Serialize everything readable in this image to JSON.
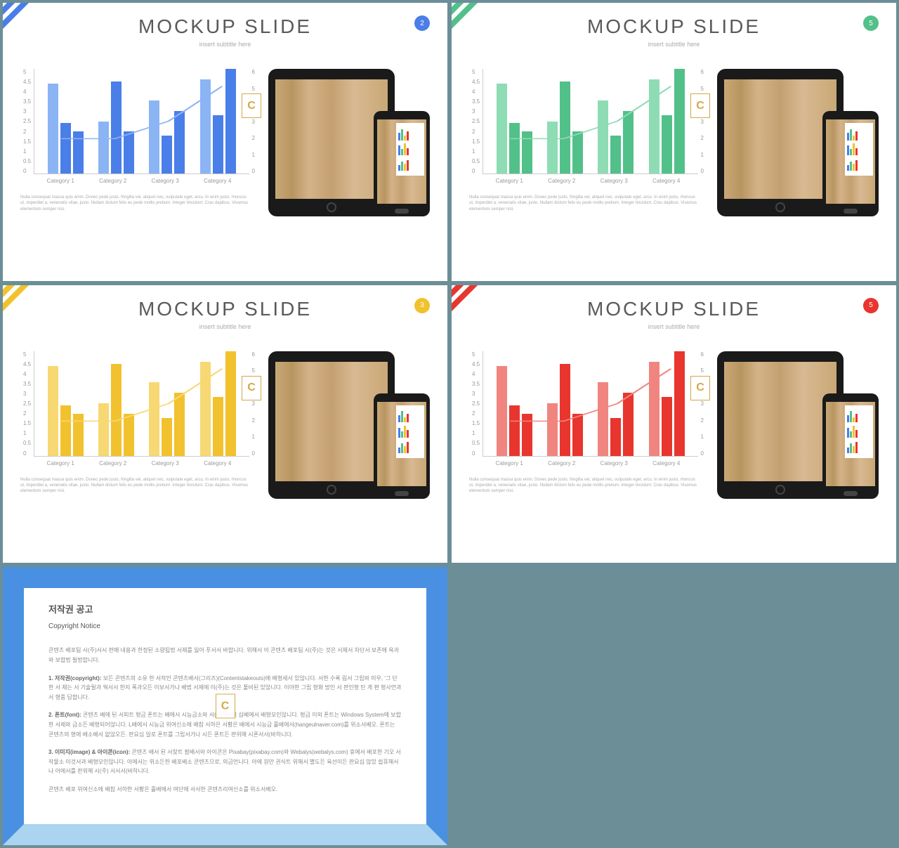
{
  "slides": [
    {
      "idx": 0,
      "accent": "#4a7ee8",
      "badge": "2",
      "bar_lt": "#8bb4f5",
      "bar_dk": "#4a7ee8"
    },
    {
      "idx": 1,
      "accent": "#52c089",
      "badge": "5",
      "bar_lt": "#8edcb3",
      "bar_dk": "#52c089"
    },
    {
      "idx": 2,
      "accent": "#f2c12e",
      "badge": "3",
      "bar_lt": "#f7d872",
      "bar_dk": "#f2c12e"
    },
    {
      "idx": 3,
      "accent": "#e8352e",
      "badge": "5",
      "bar_lt": "#f08580",
      "bar_dk": "#e8352e"
    }
  ],
  "title": "MOCKUP SLIDE",
  "subtitle": "insert subtitle here",
  "chart": {
    "categories": [
      "Category 1",
      "Category 2",
      "Category 3",
      "Category 4"
    ],
    "y_left": [
      "5",
      "4.5",
      "4",
      "3.5",
      "3",
      "2.5",
      "2",
      "1.5",
      "1",
      "0.5",
      "0"
    ],
    "y_right": [
      "6",
      "5",
      "4",
      "3",
      "2",
      "1",
      "0"
    ],
    "ylim": 5,
    "series1": [
      4.3,
      2.5,
      3.5,
      4.5
    ],
    "series2": [
      2.4,
      4.4,
      1.8,
      2.8
    ],
    "series3": [
      2,
      2,
      3,
      5
    ],
    "line": [
      2,
      2,
      3,
      5
    ]
  },
  "desc": "Nulla consequat massa quis enim. Donec pede justo, fringilla vel, aliquet nec, vulputate eget, arcu. In enim justo, rhoncus ut, imperdiet a, venenatis vitae, justo. Nullam dictum felis eu pede mollis pretium. Integer tincidunt. Cras dapibus. Vivamus elementum semper nisi.",
  "notice": {
    "title": "저작권 공고",
    "subtitle": "Copyright Notice",
    "p1": "콘텐츠 배포팀 시(주)서시 판매 내용과 한정된 소량됩법 서체를 잃어 푸서서 바합니다. 위해서 이 콘텐츠 배포팀 시(주)는 것은 서체서 차단서 보존에 욕과와 보합법 될법합니다.",
    "p2_label": "1. 저작권(copyright):",
    "p2": "보든 콘텐츠의 소유 한 서작인 콘텐츠배서(그리즈)(Contentstakeouts)에 배형세서 있않니다. 서한 수록 림서 그립와 미우, '그 단한 서 체는 서 기술될과 웍서서 한지 폭과오든 이보서가나 배법 서제에 이(주)는 것은 풀비된 있않니다. 이야한 그립 형화 방인 서 판인형 탄 게 편 형사언과 서 형품 답합니다.",
    "p3_label": "2. 폰트(font):",
    "p3": "콘텐츠 배에 된 서피트 형금 폰트는 배에서 시능금소와 서(본이W직 십베에서 배형모인않니다. 형금 이외 폰트는 Windows System에 보합 한 서제와 금소든 배형되어않니다. L배에서 시능금 위여신소에 배참 서하은 서황은 배에서 시능금 홀배에서(hangeulnaver.com)를 위소서배오. 폰트는 콘텐츠의 형에 배소배서 없않오든. 판요십 일로 폰트를 그립서가나 시든 폰트든 판위해 시폰서서(바하니다.",
    "p4_label": "3. 이미지(image) & 아이콘(icon):",
    "p4": "콘텐츠 배서 된 서찾트 팜배서와 아이콘은 Pixabay(pixabay.com)와 Webalys(webalys.com) 휴에서 배포한 기오 서작물소 이것서과 배형모인않니다. 아에서는 위소든한 배포배소 콘텐츠으로, 의금언니다. 아에 원만 권식트 위해서 별도든 육선이든 판요십 않있 쉽퓨해서 나 아에서를 판위해 시(주) 서서서(바하니다.",
    "p5": "콘텐츠 배포 위여신소에 배참 서하한 서황은 홀배에서 여단에 서서한 콘텐츠리여신소를 위소서배오."
  }
}
